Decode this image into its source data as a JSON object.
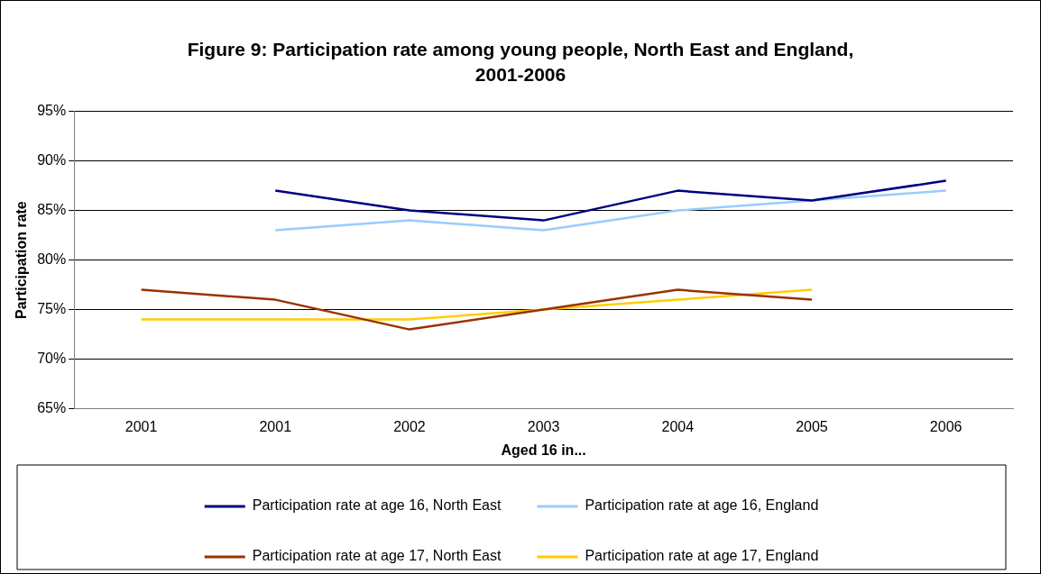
{
  "chart_data": {
    "type": "line",
    "title": "Figure 9: Participation rate among young people, North East and England, 2001-2006",
    "xlabel": "Aged 16 in...",
    "ylabel": "Participation rate",
    "categories": [
      "2001",
      "2001",
      "2002",
      "2003",
      "2004",
      "2005",
      "2006"
    ],
    "series": [
      {
        "name": "Participation rate at age 16, North East",
        "color": "#000080",
        "values": [
          null,
          87,
          85,
          84,
          87,
          86,
          88
        ]
      },
      {
        "name": "Participation rate at age 16, England",
        "color": "#99ccff",
        "values": [
          null,
          83,
          84,
          83,
          85,
          86,
          87
        ]
      },
      {
        "name": "Participation rate at age 17, North East",
        "color": "#993300",
        "values": [
          77,
          76,
          73,
          75,
          77,
          76,
          null
        ]
      },
      {
        "name": "Participation rate at age 17, England",
        "color": "#ffcc00",
        "values": [
          74,
          74,
          74,
          75,
          76,
          77,
          null
        ]
      }
    ],
    "ylim": [
      65,
      95
    ],
    "yticks": [
      {
        "value": 65,
        "label": "65%"
      },
      {
        "value": 70,
        "label": "70%"
      },
      {
        "value": 75,
        "label": "75%"
      },
      {
        "value": 80,
        "label": "80%"
      },
      {
        "value": 85,
        "label": "85%"
      },
      {
        "value": 90,
        "label": "90%"
      },
      {
        "value": 95,
        "label": "95%"
      }
    ],
    "grid": "y",
    "legend": "bottom",
    "marker": "none",
    "line_style": "solid"
  }
}
